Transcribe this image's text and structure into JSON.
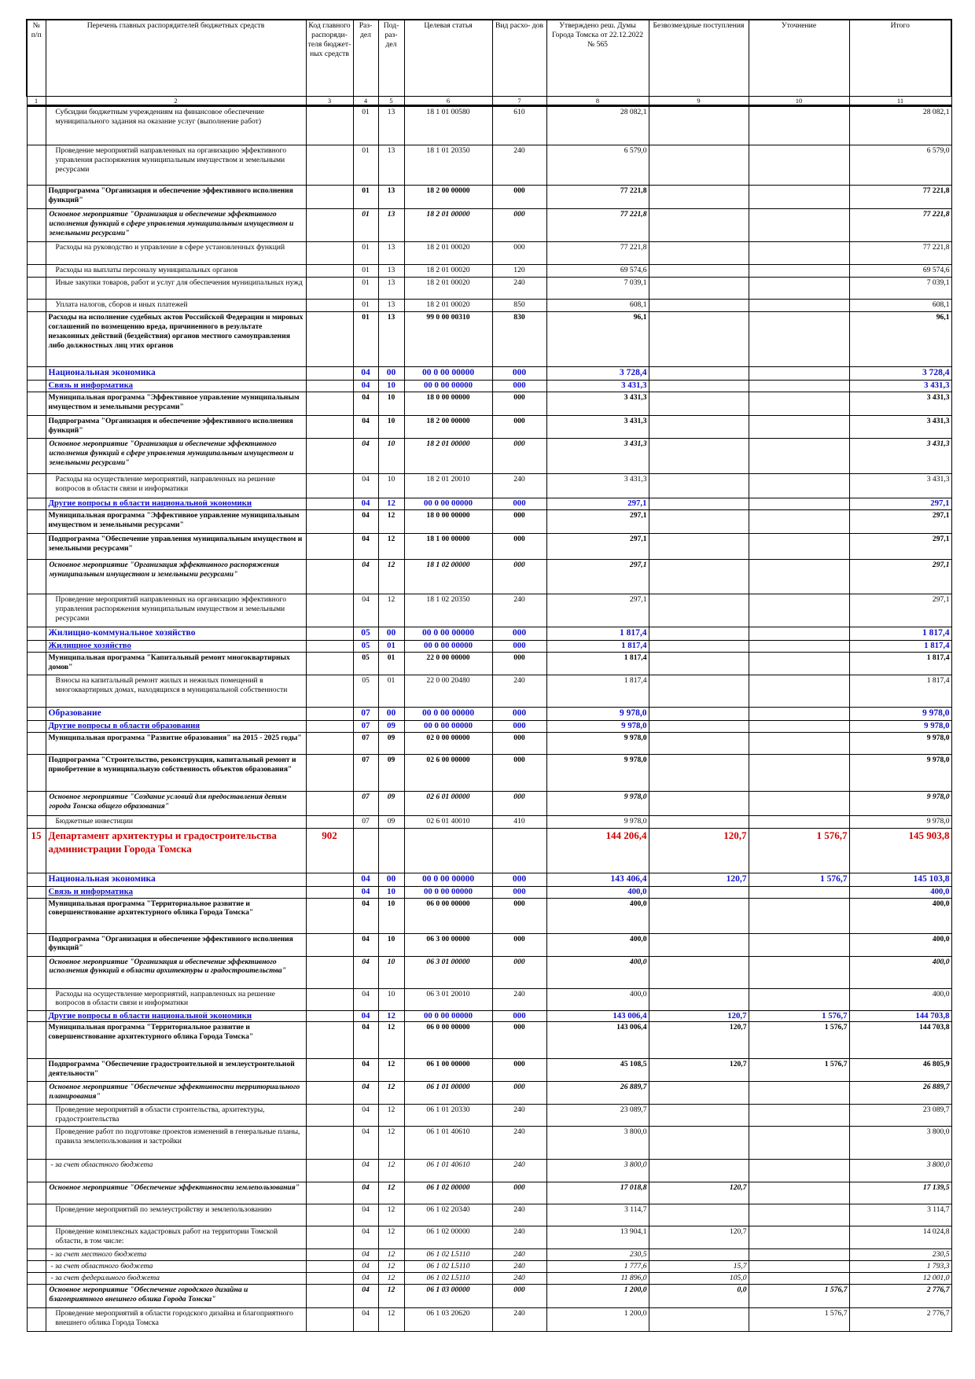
{
  "header": {
    "columns": [
      "№ п/п",
      "Перечень главных распорядителей бюджетных средств",
      "Код главного распоряди- теля бюджет- ных средств",
      "Раз- дел",
      "Под- раз- дел",
      "Целевая статья",
      "Вид расхо- дов",
      "Утверждено реш. Думы Города Томска от 22.12.2022 № 565",
      "Безвозмездные поступления",
      "Уточнение",
      "Итого"
    ],
    "numbers": [
      "1",
      "2",
      "3",
      "4",
      "5",
      "6",
      "7",
      "8",
      "9",
      "10",
      "11"
    ]
  },
  "rows": [
    {
      "style": "reg",
      "h": 50,
      "num": "",
      "name": "Субсидии бюджетным учреждениям на финансовое обеспечение муниципального задания на оказание услуг (выполнение работ)",
      "code": "",
      "razdel": "01",
      "podrazdel": "13",
      "target": "18 1 01 00580",
      "vid": "610",
      "approved": "28 082,1",
      "free": "",
      "change": "",
      "total": "28 082,1"
    },
    {
      "style": "reg",
      "h": 51,
      "num": "",
      "name": "Проведение мероприятий направленных на организацию эффективного управления распоряжения муниципальным имуществом и земельными ресурсами",
      "code": "",
      "razdel": "01",
      "podrazdel": "13",
      "target": "18 1 01 20350",
      "vid": "240",
      "approved": "6 579,0",
      "free": "",
      "change": "",
      "total": "6 579,0"
    },
    {
      "style": "b",
      "h": 30,
      "num": "",
      "name": "Подпрограмма \"Организация и обеспечение эффективного исполнения функций\"",
      "code": "",
      "razdel": "01",
      "podrazdel": "13",
      "target": "18 2 00 00000",
      "vid": "000",
      "approved": "77 221,8",
      "free": "",
      "change": "",
      "total": "77 221,8"
    },
    {
      "style": "bi",
      "h": 42,
      "num": "",
      "name": "Основное мероприятие \"Организация и обеспечение эффективного исполнения функций в сфере управления муниципальным имуществом и земельными ресурсами\"",
      "code": "",
      "razdel": "01",
      "podrazdel": "13",
      "target": "18 2 01 00000",
      "vid": "000",
      "approved": "77 221,8",
      "free": "",
      "change": "",
      "total": "77 221,8"
    },
    {
      "style": "reg",
      "h": 29,
      "num": "",
      "name": "Расходы на руководство и управление в сфере установленных функций",
      "code": "",
      "razdel": "01",
      "podrazdel": "13",
      "target": "18 2 01 00020",
      "vid": "000",
      "approved": "77 221,8",
      "free": "",
      "change": "",
      "total": "77 221,8"
    },
    {
      "style": "reg",
      "h": 16,
      "num": "",
      "name": "Расходы на выплаты персоналу муниципальных органов",
      "code": "",
      "razdel": "01",
      "podrazdel": "13",
      "target": "18 2 01 00020",
      "vid": "120",
      "approved": "69 574,6",
      "free": "",
      "change": "",
      "total": "69 574,6"
    },
    {
      "style": "reg",
      "h": 28,
      "num": "",
      "name": "Иные закупки товаров, работ и услуг для обеспечения муниципальных нужд",
      "code": "",
      "razdel": "01",
      "podrazdel": "13",
      "target": "18 2 01 00020",
      "vid": "240",
      "approved": "7 039,1",
      "free": "",
      "change": "",
      "total": "7 039,1"
    },
    {
      "style": "reg",
      "h": 16,
      "num": "",
      "name": "Уплата налогов, сборов и иных платежей",
      "code": "",
      "razdel": "01",
      "podrazdel": "13",
      "target": "18 2 01 00020",
      "vid": "850",
      "approved": "608,1",
      "free": "",
      "change": "",
      "total": "608,1"
    },
    {
      "style": "b",
      "h": 70,
      "num": "",
      "name": "Расходы на исполнение судебных актов Российской Федерации и мировых соглашений по возмещению вреда, причиненного в результате незаконных действий (бездействия) органов местного самоуправления либо должностных лиц этих органов",
      "code": "",
      "razdel": "01",
      "podrazdel": "13",
      "target": "99 0 00 00310",
      "vid": "830",
      "approved": "96,1",
      "free": "",
      "change": "",
      "total": "96,1"
    },
    {
      "style": "sec",
      "h": 17,
      "num": "",
      "name": "Национальная экономика",
      "code": "",
      "razdel": "04",
      "podrazdel": "00",
      "target": "00 0 00 00000",
      "vid": "000",
      "approved": "3 728,4",
      "free": "",
      "change": "",
      "total": "3 728,4"
    },
    {
      "style": "sub",
      "h": 15,
      "num": "",
      "name": "Связь и информатика",
      "code": "",
      "razdel": "04",
      "podrazdel": "10",
      "target": "00 0 00 00000",
      "vid": "000",
      "approved": "3 431,3",
      "free": "",
      "change": "",
      "total": "3 431,3"
    },
    {
      "style": "b",
      "h": 30,
      "num": "",
      "name": "Муниципальная программа \"Эффективное управление муниципальным имуществом и земельными ресурсами\"",
      "code": "",
      "razdel": "04",
      "podrazdel": "10",
      "target": "18 0 00 00000",
      "vid": "000",
      "approved": "3 431,3",
      "free": "",
      "change": "",
      "total": "3 431,3"
    },
    {
      "style": "b",
      "h": 29,
      "num": "",
      "name": "Подпрограмма \"Организация и обеспечение эффективного исполнения функций\"",
      "code": "",
      "razdel": "04",
      "podrazdel": "10",
      "target": "18 2 00 00000",
      "vid": "000",
      "approved": "3 431,3",
      "free": "",
      "change": "",
      "total": "3 431,3"
    },
    {
      "style": "bi",
      "h": 45,
      "num": "",
      "name": "Основное мероприятие \"Организация и обеспечение эффективного исполнения функций в сфере управления муниципальным имуществом и земельными ресурсами\"",
      "code": "",
      "razdel": "04",
      "podrazdel": "10",
      "target": "18 2 01 00000",
      "vid": "000",
      "approved": "3 431,3",
      "free": "",
      "change": "",
      "total": "3 431,3"
    },
    {
      "style": "reg",
      "h": 31,
      "num": "",
      "name": "Расходы на осуществление мероприятий, направленных на решение вопросов в области связи и информатики",
      "code": "",
      "razdel": "04",
      "podrazdel": "10",
      "target": "18 2 01 20010",
      "vid": "240",
      "approved": "3 431,3",
      "free": "",
      "change": "",
      "total": "3 431,3"
    },
    {
      "style": "sub",
      "h": 14,
      "num": "",
      "name": "Другие вопросы в области национальной экономики",
      "code": "",
      "razdel": "04",
      "podrazdel": "12",
      "target": "00 0 00 00000",
      "vid": "000",
      "approved": "297,1",
      "free": "",
      "change": "",
      "total": "297,1"
    },
    {
      "style": "b",
      "h": 30,
      "num": "",
      "name": "Муниципальная программа \"Эффективное управление муниципальным имуществом и земельными ресурсами\"",
      "code": "",
      "razdel": "04",
      "podrazdel": "12",
      "target": "18 0 00 00000",
      "vid": "000",
      "approved": "297,1",
      "free": "",
      "change": "",
      "total": "297,1"
    },
    {
      "style": "b",
      "h": 33,
      "num": "",
      "name": "Подпрограмма \"Обеспечение управления муниципальным имуществом и земельными ресурсами\"",
      "code": "",
      "razdel": "04",
      "podrazdel": "12",
      "target": "18 1 00 00000",
      "vid": "000",
      "approved": "297,1",
      "free": "",
      "change": "",
      "total": "297,1"
    },
    {
      "style": "bi",
      "h": 44,
      "num": "",
      "name": "Основное мероприятие \"Организация эффективного распоряжения муниципальным имуществом и земельными ресурсами\"",
      "code": "",
      "razdel": "04",
      "podrazdel": "12",
      "target": "18 1 02 00000",
      "vid": "000",
      "approved": "297,1",
      "free": "",
      "change": "",
      "total": "297,1"
    },
    {
      "style": "reg",
      "h": 42,
      "num": "",
      "name": "Проведение мероприятий направленных на организацию эффективного управления распоряжения муниципальным имуществом и земельными ресурсами",
      "code": "",
      "razdel": "04",
      "podrazdel": "12",
      "target": "18 1 02 20350",
      "vid": "240",
      "approved": "297,1",
      "free": "",
      "change": "",
      "total": "297,1"
    },
    {
      "style": "sec",
      "h": 17,
      "num": "",
      "name": "Жилищно-коммунальное хозяйство",
      "code": "",
      "razdel": "05",
      "podrazdel": "00",
      "target": "00 0 00 00000",
      "vid": "000",
      "approved": "1 817,4",
      "free": "",
      "change": "",
      "total": "1 817,4"
    },
    {
      "style": "sub",
      "h": 14,
      "num": "",
      "name": "Жилищное хозяйство",
      "code": "",
      "razdel": "05",
      "podrazdel": "01",
      "target": "00 0 00 00000",
      "vid": "000",
      "approved": "1 817,4",
      "free": "",
      "change": "",
      "total": "1 817,4"
    },
    {
      "style": "b",
      "h": 29,
      "num": "",
      "name": "Муниципальная программа \"Капитальный ремонт многоквартирных домов\"",
      "code": "",
      "razdel": "05",
      "podrazdel": "01",
      "target": "22 0 00 00000",
      "vid": "000",
      "approved": "1 817,4",
      "free": "",
      "change": "",
      "total": "1 817,4"
    },
    {
      "style": "reg",
      "h": 41,
      "num": "",
      "name": "Взносы на капитальный ремонт жилых и нежилых помещений в многоквартирных домах, находящихся в муниципальной собственности",
      "code": "",
      "razdel": "05",
      "podrazdel": "01",
      "target": "22 0 00 20480",
      "vid": "240",
      "approved": "1 817,4",
      "free": "",
      "change": "",
      "total": "1 817,4"
    },
    {
      "style": "sec",
      "h": 17,
      "num": "",
      "name": "Образование",
      "code": "",
      "razdel": "07",
      "podrazdel": "00",
      "target": "00 0 00 00000",
      "vid": "000",
      "approved": "9 978,0",
      "free": "",
      "change": "",
      "total": "9 978,0"
    },
    {
      "style": "sub",
      "h": 14,
      "num": "",
      "name": "Другие вопросы в области образования",
      "code": "",
      "razdel": "07",
      "podrazdel": "09",
      "target": "00 0 00 00000",
      "vid": "000",
      "approved": "9 978,0",
      "free": "",
      "change": "",
      "total": "9 978,0"
    },
    {
      "style": "b",
      "h": 28,
      "num": "",
      "name": "Муниципальная программа \"Развитие образования\" на 2015 - 2025 годы\"",
      "code": "",
      "razdel": "07",
      "podrazdel": "09",
      "target": "02 0 00 00000",
      "vid": "000",
      "approved": "9 978,0",
      "free": "",
      "change": "",
      "total": "9 978,0"
    },
    {
      "style": "b",
      "h": 47,
      "num": "",
      "name": "Подпрограмма \"Строительство, реконструкция, капитальный ремонт и приобретение в муниципальную собственность объектов образования\"",
      "code": "",
      "razdel": "07",
      "podrazdel": "09",
      "target": "02 6 00 00000",
      "vid": "000",
      "approved": "9 978,0",
      "free": "",
      "change": "",
      "total": "9 978,0"
    },
    {
      "style": "bi",
      "h": 31,
      "num": "",
      "name": "Основное мероприятие \"Создание условий для предоставления детям города Томска общего образования\"",
      "code": "",
      "razdel": "07",
      "podrazdel": "09",
      "target": "02 6 01 00000",
      "vid": "000",
      "approved": "9 978,0",
      "free": "",
      "change": "",
      "total": "9 978,0"
    },
    {
      "style": "reg",
      "h": 16,
      "num": "",
      "name": "Бюджетные инвестиции",
      "code": "",
      "razdel": "07",
      "podrazdel": "09",
      "target": "02 6 01 40010",
      "vid": "410",
      "approved": "9 978,0",
      "free": "",
      "change": "",
      "total": "9 978,0"
    },
    {
      "style": "dept",
      "h": 57,
      "num": "15",
      "name": "Департамент архитектуры и градостроительства администрации Города Томска",
      "code": "902",
      "razdel": "",
      "podrazdel": "",
      "target": "",
      "vid": "",
      "approved": "144 206,4",
      "free": "120,7",
      "change": "1 576,7",
      "total": "145 903,8"
    },
    {
      "style": "sec",
      "h": 17,
      "num": "",
      "name": "Национальная экономика",
      "code": "",
      "razdel": "04",
      "podrazdel": "00",
      "target": "00 0 00 00000",
      "vid": "000",
      "approved": "143 406,4",
      "free": "120,7",
      "change": "1 576,7",
      "total": "145 103,8"
    },
    {
      "style": "sub",
      "h": 14,
      "num": "",
      "name": "Связь и информатика",
      "code": "",
      "razdel": "04",
      "podrazdel": "10",
      "target": "00 0 00 00000",
      "vid": "000",
      "approved": "400,0",
      "free": "",
      "change": "",
      "total": "400,0"
    },
    {
      "style": "b",
      "h": 45,
      "num": "",
      "name": "Муниципальная программа \"Территориальное развитие и совершенствование архитектурного облика Города Томска\"",
      "code": "",
      "razdel": "04",
      "podrazdel": "10",
      "target": "06 0 00 00000",
      "vid": "000",
      "approved": "400,0",
      "free": "",
      "change": "",
      "total": "400,0"
    },
    {
      "style": "b",
      "h": 29,
      "num": "",
      "name": "Подпрограмма \"Организация и обеспечение эффективного исполнения функций\"",
      "code": "",
      "razdel": "04",
      "podrazdel": "10",
      "target": "06 3 00 00000",
      "vid": "000",
      "approved": "400,0",
      "free": "",
      "change": "",
      "total": "400,0"
    },
    {
      "style": "bi",
      "h": 41,
      "num": "",
      "name": "Основное мероприятие \"Организация и обеспечение эффективного исполнения функций в области архитектуры и градостроительства\"",
      "code": "",
      "razdel": "04",
      "podrazdel": "10",
      "target": "06 3 01 00000",
      "vid": "000",
      "approved": "400,0",
      "free": "",
      "change": "",
      "total": "400,0"
    },
    {
      "style": "reg",
      "h": 28,
      "num": "",
      "name": "Расходы на осуществление мероприятий, направленных на решение вопросов в области связи и информатики",
      "code": "",
      "razdel": "04",
      "podrazdel": "10",
      "target": "06 3 01 20010",
      "vid": "240",
      "approved": "400,0",
      "free": "",
      "change": "",
      "total": "400,0"
    },
    {
      "style": "sub",
      "h": 14,
      "num": "",
      "name": "Другие вопросы в области национальной экономики",
      "code": "",
      "razdel": "04",
      "podrazdel": "12",
      "target": "00 0 00 00000",
      "vid": "000",
      "approved": "143 006,4",
      "free": "120,7",
      "change": "1 576,7",
      "total": "144 703,8"
    },
    {
      "style": "b",
      "h": 47,
      "num": "",
      "name": "Муниципальная программа \"Территориальное развитие и совершенствование архитектурного облика Города Томска\"",
      "code": "",
      "razdel": "04",
      "podrazdel": "12",
      "target": "06 0 00 00000",
      "vid": "000",
      "approved": "143 006,4",
      "free": "120,7",
      "change": "1 576,7",
      "total": "144 703,8"
    },
    {
      "style": "b",
      "h": 29,
      "num": "",
      "name": "Подпрограмма \"Обеспечение градостроительной и землеустроительной деятельности\"",
      "code": "",
      "razdel": "04",
      "podrazdel": "12",
      "target": "06 1 00 00000",
      "vid": "000",
      "approved": "45 108,5",
      "free": "120,7",
      "change": "1 576,7",
      "total": "46 805,9"
    },
    {
      "style": "bi",
      "h": 29,
      "num": "",
      "name": "Основное мероприятие \"Обеспечение эффективности территориального планирования\"",
      "code": "",
      "razdel": "04",
      "podrazdel": "12",
      "target": "06 1 01 00000",
      "vid": "000",
      "approved": "26 889,7",
      "free": "",
      "change": "",
      "total": "26 889,7"
    },
    {
      "style": "reg",
      "h": 28,
      "num": "",
      "name": "Проведение мероприятий в области строительства, архитектуры, градостроительства",
      "code": "",
      "razdel": "04",
      "podrazdel": "12",
      "target": "06 1 01 20330",
      "vid": "240",
      "approved": "23 089,7",
      "free": "",
      "change": "",
      "total": "23 089,7"
    },
    {
      "style": "reg",
      "h": 42,
      "num": "",
      "name": "Проведение работ по подготовке проектов изменений в генеральные планы, правила землепользования и застройки",
      "code": "",
      "razdel": "04",
      "podrazdel": "12",
      "target": "06 1 01 40610",
      "vid": "240",
      "approved": "3 800,0",
      "free": "",
      "change": "",
      "total": "3 800,0"
    },
    {
      "style": "it",
      "h": 29,
      "num": "",
      "name": "- за счет областного бюджета",
      "code": "",
      "razdel": "04",
      "podrazdel": "12",
      "target": "06 1 01 40610",
      "vid": "240",
      "approved": "3 800,0",
      "free": "",
      "change": "",
      "total": "3 800,0"
    },
    {
      "style": "bi",
      "h": 28,
      "num": "",
      "name": "Основное мероприятие \"Обеспечение эффективности землепользования\"",
      "code": "",
      "razdel": "04",
      "podrazdel": "12",
      "target": "06 1 02 00000",
      "vid": "000",
      "approved": "17 018,8",
      "free": "120,7",
      "change": "",
      "total": "17 139,5"
    },
    {
      "style": "reg",
      "h": 28,
      "num": "",
      "name": "Проведение мероприятий по землеустройству и землепользованию",
      "code": "",
      "razdel": "04",
      "podrazdel": "12",
      "target": "06 1 02 20340",
      "vid": "240",
      "approved": "3 114,7",
      "free": "",
      "change": "",
      "total": "3 114,7"
    },
    {
      "style": "reg",
      "h": 29,
      "num": "",
      "name": "Проведение комплексных кадастровых работ на территории Томской области, в том числе:",
      "code": "",
      "razdel": "04",
      "podrazdel": "12",
      "target": "06 1 02 00000",
      "vid": "240",
      "approved": "13 904,1",
      "free": "120,7",
      "change": "",
      "total": "14 024,8"
    },
    {
      "style": "it",
      "h": 14,
      "num": "",
      "name": "- за счет местного бюджета",
      "code": "",
      "razdel": "04",
      "podrazdel": "12",
      "target": "06 1 02 L5110",
      "vid": "240",
      "approved": "230,5",
      "free": "",
      "change": "",
      "total": "230,5"
    },
    {
      "style": "it",
      "h": 14,
      "num": "",
      "name": "- за счет областного бюджета",
      "code": "",
      "razdel": "04",
      "podrazdel": "12",
      "target": "06 1 02 L5110",
      "vid": "240",
      "approved": "1 777,6",
      "free": "15,7",
      "change": "",
      "total": "1 793,3"
    },
    {
      "style": "it",
      "h": 14,
      "num": "",
      "name": "- за счет федерального бюджета",
      "code": "",
      "razdel": "04",
      "podrazdel": "12",
      "target": "06 1 02 L5110",
      "vid": "240",
      "approved": "11 896,0",
      "free": "105,0",
      "change": "",
      "total": "12 001,0"
    },
    {
      "style": "bi",
      "h": 30,
      "num": "",
      "name": "Основное мероприятие \"Обеспечение городского дизайна и благоприятного внешнего облика Города Томска\"",
      "code": "",
      "razdel": "04",
      "podrazdel": "12",
      "target": "06 1 03 00000",
      "vid": "000",
      "approved": "1 200,0",
      "free": "0,0",
      "change": "1 576,7",
      "total": "2 776,7"
    },
    {
      "style": "reg",
      "h": 30,
      "num": "",
      "name": "Проведение мероприятий в области городского дизайна и благоприятного внешнего облика Города Томска",
      "code": "",
      "razdel": "04",
      "podrazdel": "12",
      "target": "06 1 03 20620",
      "vid": "240",
      "approved": "1 200,0",
      "free": "",
      "change": "1 576,7",
      "total": "2 776,7"
    }
  ]
}
